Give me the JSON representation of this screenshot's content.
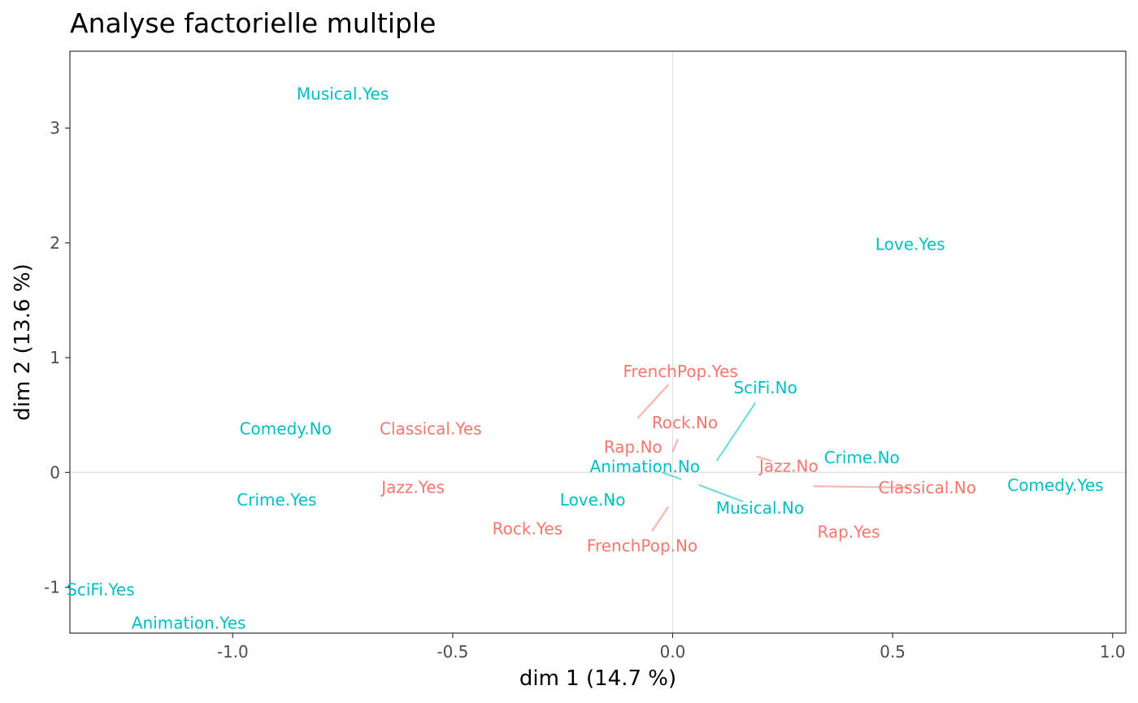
{
  "chart_data": {
    "type": "scatter",
    "title": "Analyse factorielle multiple",
    "xlabel": "dim 1 (14.7 %)",
    "ylabel": "dim 2 (13.6 %)",
    "xlim": [
      -1.37,
      1.03
    ],
    "ylim": [
      -1.4,
      3.67
    ],
    "x_ticks": [
      -1.0,
      -0.5,
      0.0,
      0.5,
      1.0
    ],
    "x_tick_labels": [
      "-1.0",
      "-0.5",
      "0.0",
      "0.5",
      "1.0"
    ],
    "y_ticks": [
      -1,
      0,
      1,
      2,
      3
    ],
    "y_tick_labels": [
      "-1",
      "0",
      "1",
      "2",
      "3"
    ],
    "reference_lines": {
      "x": 0,
      "y": 0
    },
    "grid": false,
    "colors": {
      "red": "#F8766D",
      "teal": "#00BFC4"
    },
    "series": [
      {
        "color": "#F8766D",
        "points": [
          {
            "label": "Classical.Yes",
            "x": -0.55,
            "y": 0.38
          },
          {
            "label": "Classical.No",
            "x": 0.32,
            "y": -0.12
          },
          {
            "label": "FrenchPop.Yes",
            "x": -0.08,
            "y": 0.47
          },
          {
            "label": "FrenchPop.No",
            "x": -0.01,
            "y": -0.3
          },
          {
            "label": "Jazz.Yes",
            "x": -0.59,
            "y": -0.13
          },
          {
            "label": "Jazz.No",
            "x": 0.19,
            "y": 0.14
          },
          {
            "label": "Rap.Yes",
            "x": 0.4,
            "y": -0.52
          },
          {
            "label": "Rap.No",
            "x": -0.09,
            "y": 0.22
          },
          {
            "label": "Rock.Yes",
            "x": -0.33,
            "y": -0.49
          },
          {
            "label": "Rock.No",
            "x": 0.0,
            "y": 0.18
          }
        ]
      },
      {
        "color": "#00BFC4",
        "points": [
          {
            "label": "Musical.Yes",
            "x": -0.75,
            "y": 3.3
          },
          {
            "label": "Musical.No",
            "x": 0.06,
            "y": -0.11
          },
          {
            "label": "Love.Yes",
            "x": 0.54,
            "y": 1.99
          },
          {
            "label": "Love.No",
            "x": -0.13,
            "y": -0.24
          },
          {
            "label": "Comedy.Yes",
            "x": 0.87,
            "y": -0.11
          },
          {
            "label": "Comedy.No",
            "x": -0.88,
            "y": 0.38
          },
          {
            "label": "Crime.Yes",
            "x": -0.9,
            "y": -0.24
          },
          {
            "label": "Crime.No",
            "x": 0.43,
            "y": 0.13
          },
          {
            "label": "SciFi.Yes",
            "x": -1.3,
            "y": -1.02
          },
          {
            "label": "SciFi.No",
            "x": 0.1,
            "y": 0.1
          },
          {
            "label": "Animation.Yes",
            "x": -1.1,
            "y": -1.31
          },
          {
            "label": "Animation.No",
            "x": 0.02,
            "y": -0.06
          }
        ]
      }
    ]
  }
}
